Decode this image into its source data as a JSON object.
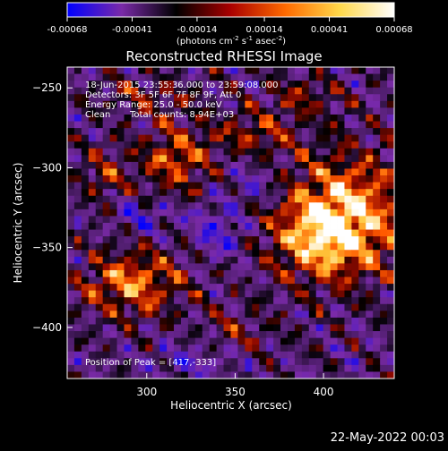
{
  "colorbar": {
    "ticks": [
      "-0.00068",
      "-0.00041",
      "-0.00014",
      "0.00014",
      "0.00041",
      "0.00068"
    ],
    "tick_values": [
      -0.00068,
      -0.00041,
      -0.00014,
      0.00014,
      0.00041,
      0.00068
    ],
    "range": [
      -0.00068,
      0.00068
    ],
    "unit_main": "(photons cm",
    "unit_sup1": "-2",
    "unit_mid": " s",
    "unit_sup2": "-1",
    "unit_end": " asec",
    "unit_sup3": "-2",
    "unit_close": ")",
    "colors": [
      "#0000ff",
      "#7a2aa8",
      "#000000",
      "#aa0000",
      "#ff6a00",
      "#ffd84a",
      "#ffffff"
    ]
  },
  "annotations": {
    "time_range": "18-Jun-2015 23:55:36.000 to 23:59:08.000",
    "detectors": "Detectors: 3F 5F 6F 7F 8F 9F, Att 0",
    "energy": "Energy Range: 25.0 - 50.0 keV",
    "clean_label": "Clean",
    "total_counts": "Total counts: 8.94E+03",
    "peak": "Position of Peak = [417,-333]"
  },
  "footer": {
    "timestamp": "22-May-2022 00:03"
  },
  "chart_data": {
    "type": "heatmap",
    "title": "Reconstructed RHESSI Image",
    "xlabel": "Heliocentric X (arcsec)",
    "ylabel": "Heliocentric Y (arcsec)",
    "xlim": [
      255,
      440
    ],
    "ylim": [
      -432,
      -237
    ],
    "x_ticks": [
      300,
      350,
      400
    ],
    "y_ticks": [
      -250,
      -300,
      -350,
      -400
    ],
    "x_tick_labels": [
      "300",
      "350",
      "400"
    ],
    "y_tick_labels": [
      "−250",
      "−300",
      "−350",
      "−400"
    ],
    "peak": [
      417,
      -333
    ],
    "sources": [
      {
        "x": 412,
        "y": -330,
        "sx": 24,
        "sy": 26,
        "amp": 1.0
      },
      {
        "x": 396,
        "y": -345,
        "sx": 18,
        "sy": 18,
        "amp": 0.55
      },
      {
        "x": 292,
        "y": -372,
        "sx": 20,
        "sy": 14,
        "amp": 0.8
      },
      {
        "x": 316,
        "y": -295,
        "sx": 14,
        "sy": 16,
        "amp": 0.65
      },
      {
        "x": 360,
        "y": -278,
        "sx": 16,
        "sy": 10,
        "amp": 0.5
      },
      {
        "x": 275,
        "y": -305,
        "sx": 10,
        "sy": 14,
        "amp": 0.4
      },
      {
        "x": 390,
        "y": -255,
        "sx": 14,
        "sy": 8,
        "amp": 0.4
      },
      {
        "x": 350,
        "y": -405,
        "sx": 14,
        "sy": 10,
        "amp": 0.3
      },
      {
        "x": 300,
        "y": -255,
        "sx": 18,
        "sy": 8,
        "amp": 0.35
      },
      {
        "x": 340,
        "y": -340,
        "sx": 10,
        "sy": 12,
        "amp": -0.45
      },
      {
        "x": 300,
        "y": -330,
        "sx": 14,
        "sy": 8,
        "amp": -0.35
      },
      {
        "x": 360,
        "y": -310,
        "sx": 10,
        "sy": 10,
        "amp": -0.3
      },
      {
        "x": 330,
        "y": -420,
        "sx": 16,
        "sy": 8,
        "amp": -0.3
      }
    ]
  }
}
